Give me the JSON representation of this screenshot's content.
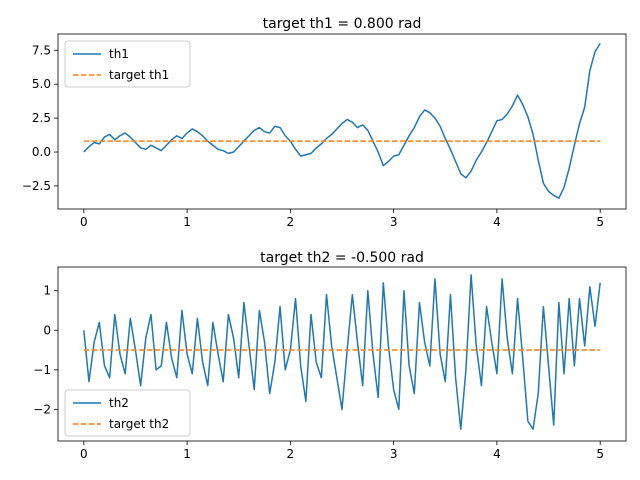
{
  "chart_data": [
    {
      "type": "line",
      "title": "target th1 = 0.800 rad",
      "xlabel": "",
      "ylabel": "",
      "xlim": [
        -0.25,
        5.25
      ],
      "ylim": [
        -4.2,
        8.7
      ],
      "xticks": [
        "0",
        "1",
        "2",
        "3",
        "4",
        "5"
      ],
      "yticks": [
        "−2.5",
        "0.0",
        "2.5",
        "5.0",
        "7.5"
      ],
      "ytick_values": [
        -2.5,
        0,
        2.5,
        5,
        7.5
      ],
      "grid": false,
      "legend_position": "upper-left",
      "series": [
        {
          "name": "th1",
          "color": "#1f77b4",
          "style": "solid",
          "x": [
            0,
            0.05,
            0.1,
            0.15,
            0.2,
            0.25,
            0.3,
            0.35,
            0.4,
            0.45,
            0.5,
            0.55,
            0.6,
            0.65,
            0.7,
            0.75,
            0.8,
            0.85,
            0.9,
            0.95,
            1.0,
            1.05,
            1.1,
            1.15,
            1.2,
            1.25,
            1.3,
            1.35,
            1.4,
            1.45,
            1.5,
            1.55,
            1.6,
            1.65,
            1.7,
            1.75,
            1.8,
            1.85,
            1.9,
            1.95,
            2.0,
            2.05,
            2.1,
            2.15,
            2.2,
            2.25,
            2.3,
            2.35,
            2.4,
            2.45,
            2.5,
            2.55,
            2.6,
            2.65,
            2.7,
            2.75,
            2.8,
            2.85,
            2.9,
            2.95,
            3.0,
            3.05,
            3.1,
            3.15,
            3.2,
            3.25,
            3.3,
            3.35,
            3.4,
            3.45,
            3.5,
            3.55,
            3.6,
            3.65,
            3.7,
            3.75,
            3.8,
            3.85,
            3.9,
            3.95,
            4.0,
            4.05,
            4.1,
            4.15,
            4.2,
            4.25,
            4.3,
            4.35,
            4.4,
            4.45,
            4.5,
            4.55,
            4.6,
            4.65,
            4.7,
            4.75,
            4.8,
            4.85,
            4.9,
            4.95,
            5.0
          ],
          "y": [
            0.0,
            0.4,
            0.7,
            0.6,
            1.1,
            1.3,
            0.9,
            1.2,
            1.4,
            1.1,
            0.7,
            0.3,
            0.2,
            0.5,
            0.3,
            0.1,
            0.5,
            0.9,
            1.2,
            1.0,
            1.4,
            1.7,
            1.5,
            1.2,
            0.8,
            0.5,
            0.2,
            0.1,
            -0.1,
            0.0,
            0.4,
            0.8,
            1.2,
            1.6,
            1.8,
            1.5,
            1.4,
            1.9,
            1.8,
            1.2,
            0.8,
            0.2,
            -0.3,
            -0.2,
            -0.1,
            0.3,
            0.6,
            1.0,
            1.3,
            1.7,
            2.1,
            2.4,
            2.2,
            1.8,
            2.0,
            1.6,
            0.8,
            0.0,
            -1.0,
            -0.7,
            -0.3,
            -0.2,
            0.5,
            1.2,
            1.8,
            2.6,
            3.1,
            2.9,
            2.5,
            1.9,
            1.0,
            0.2,
            -0.7,
            -1.6,
            -1.9,
            -1.4,
            -0.6,
            0.0,
            0.7,
            1.5,
            2.3,
            2.4,
            2.8,
            3.4,
            4.2,
            3.5,
            2.6,
            1.3,
            -0.6,
            -2.3,
            -2.9,
            -3.2,
            -3.4,
            -2.6,
            -1.2,
            0.5,
            2.1,
            3.3,
            6.0,
            7.4,
            8.0
          ]
        },
        {
          "name": "target th1",
          "color": "#ff7f0e",
          "style": "dashed",
          "x": [
            0,
            5
          ],
          "y": [
            0.8,
            0.8
          ]
        }
      ]
    },
    {
      "type": "line",
      "title": "target th2 = -0.500 rad",
      "xlabel": "",
      "ylabel": "",
      "xlim": [
        -0.25,
        5.25
      ],
      "ylim": [
        -2.8,
        1.6
      ],
      "xticks": [
        "0",
        "1",
        "2",
        "3",
        "4",
        "5"
      ],
      "yticks": [
        "−2",
        "−1",
        "0",
        "1"
      ],
      "ytick_values": [
        -2,
        -1,
        0,
        1
      ],
      "grid": false,
      "legend_position": "lower-left",
      "series": [
        {
          "name": "th2",
          "color": "#1f77b4",
          "style": "solid",
          "x": [
            0,
            0.05,
            0.1,
            0.15,
            0.2,
            0.25,
            0.3,
            0.35,
            0.4,
            0.45,
            0.5,
            0.55,
            0.6,
            0.65,
            0.7,
            0.75,
            0.8,
            0.85,
            0.9,
            0.95,
            1.0,
            1.05,
            1.1,
            1.15,
            1.2,
            1.25,
            1.3,
            1.35,
            1.4,
            1.45,
            1.5,
            1.55,
            1.6,
            1.65,
            1.7,
            1.75,
            1.8,
            1.85,
            1.9,
            1.95,
            2.0,
            2.05,
            2.1,
            2.15,
            2.2,
            2.25,
            2.3,
            2.35,
            2.4,
            2.45,
            2.5,
            2.55,
            2.6,
            2.65,
            2.7,
            2.75,
            2.8,
            2.85,
            2.9,
            2.95,
            3.0,
            3.05,
            3.1,
            3.15,
            3.2,
            3.25,
            3.3,
            3.35,
            3.4,
            3.45,
            3.5,
            3.55,
            3.6,
            3.65,
            3.7,
            3.75,
            3.8,
            3.85,
            3.9,
            3.95,
            4.0,
            4.05,
            4.1,
            4.15,
            4.2,
            4.25,
            4.3,
            4.35,
            4.4,
            4.45,
            4.5,
            4.55,
            4.6,
            4.65,
            4.7,
            4.75,
            4.8,
            4.85,
            4.9,
            4.95,
            5.0
          ],
          "y": [
            0.0,
            -1.3,
            -0.3,
            0.2,
            -0.9,
            -1.2,
            0.4,
            -0.6,
            -1.1,
            0.3,
            -0.5,
            -1.4,
            -0.2,
            0.4,
            -1.0,
            -0.9,
            0.2,
            -0.7,
            -1.2,
            0.5,
            -0.6,
            -1.1,
            0.3,
            -0.8,
            -1.4,
            0.2,
            -0.6,
            -1.3,
            0.4,
            -0.2,
            -1.2,
            0.7,
            -0.4,
            -1.5,
            0.5,
            -0.3,
            -1.6,
            -0.8,
            0.6,
            -1.0,
            -0.5,
            0.8,
            -0.9,
            -1.8,
            0.4,
            -0.8,
            -1.2,
            0.9,
            -0.4,
            -1.2,
            -2.0,
            -0.5,
            0.9,
            -0.3,
            -1.4,
            1.0,
            -0.6,
            -1.7,
            1.2,
            -0.4,
            -1.5,
            -2.0,
            1.0,
            -0.9,
            -1.6,
            0.7,
            -0.3,
            -0.9,
            1.3,
            -0.6,
            -1.3,
            0.9,
            -1.2,
            -2.5,
            -1.0,
            1.4,
            -0.4,
            -1.4,
            0.6,
            -0.3,
            -1.1,
            1.3,
            -0.2,
            -1.1,
            0.8,
            -0.7,
            -2.3,
            -2.5,
            -1.6,
            0.6,
            -0.9,
            -2.4,
            0.7,
            -1.1,
            0.8,
            -0.9,
            0.8,
            -0.4,
            1.1,
            0.1,
            1.2
          ]
        },
        {
          "name": "target th2",
          "color": "#ff7f0e",
          "style": "dashed",
          "x": [
            0,
            5
          ],
          "y": [
            -0.5,
            -0.5
          ]
        }
      ]
    }
  ]
}
